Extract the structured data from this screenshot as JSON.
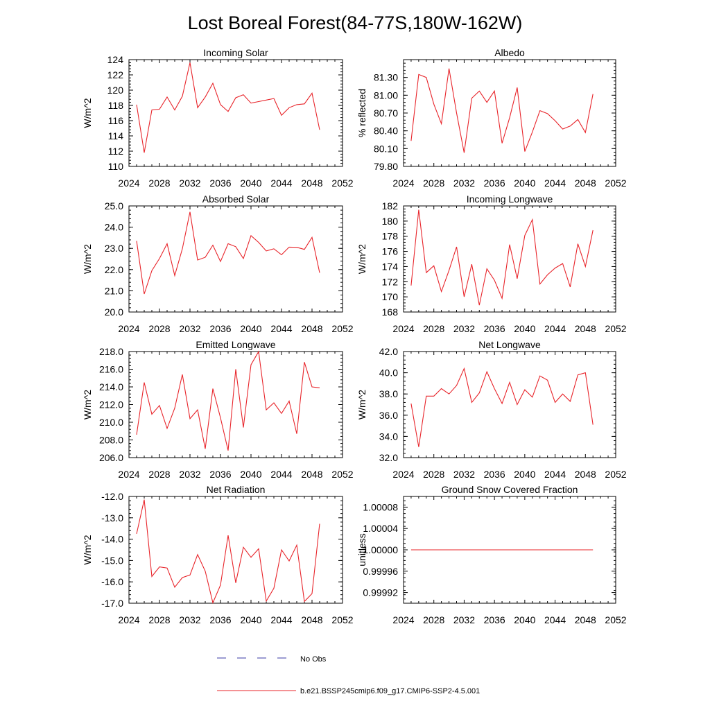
{
  "title": "Lost Boreal Forest(84-77S,180W-162W)",
  "legend": {
    "obs_label": "No Obs",
    "model_label": "b.e21.BSSP245cmip6.f09_g17.CMIP6-SSP2-4.5.001",
    "obs_color": "#3a3aa6",
    "model_color": "#e8242a"
  },
  "chart_data": [
    {
      "type": "line",
      "title": "Incoming Solar",
      "ylabel": "W/m^2",
      "xlim": [
        2024,
        2052
      ],
      "ylim": [
        110,
        124
      ],
      "xticks": [
        "2024",
        "2028",
        "2032",
        "2036",
        "2040",
        "2044",
        "2048",
        "2052"
      ],
      "yticks": [
        "110",
        "112",
        "114",
        "116",
        "118",
        "120",
        "122",
        "124"
      ],
      "series": [
        {
          "x": [
            2025,
            2026,
            2027,
            2028,
            2029,
            2030,
            2031,
            2032,
            2033,
            2034,
            2035,
            2036,
            2037,
            2038,
            2039,
            2040,
            2041,
            2042,
            2043,
            2044,
            2045,
            2046,
            2047,
            2048,
            2049
          ],
          "values": [
            118.1,
            111.8,
            117.4,
            117.5,
            119.1,
            117.4,
            119.2,
            123.6,
            117.7,
            119.1,
            120.9,
            118.1,
            117.2,
            119.0,
            119.4,
            118.3,
            118.5,
            118.7,
            118.9,
            116.7,
            117.7,
            118.1,
            118.2,
            119.6,
            114.8
          ]
        }
      ]
    },
    {
      "type": "line",
      "title": "Albedo",
      "ylabel": "% reflected",
      "xlim": [
        2024,
        2052
      ],
      "ylim": [
        79.8,
        81.6
      ],
      "xticks": [
        "2024",
        "2028",
        "2032",
        "2036",
        "2040",
        "2044",
        "2048",
        "2052"
      ],
      "yticks": [
        "79.80",
        "80.10",
        "80.40",
        "80.70",
        "81.00",
        "81.30"
      ],
      "series": [
        {
          "x": [
            2025,
            2026,
            2027,
            2028,
            2029,
            2030,
            2031,
            2032,
            2033,
            2034,
            2035,
            2036,
            2037,
            2038,
            2039,
            2040,
            2041,
            2042,
            2043,
            2044,
            2045,
            2046,
            2047,
            2048,
            2049
          ],
          "values": [
            80.23,
            81.35,
            81.3,
            80.85,
            80.52,
            81.45,
            80.7,
            80.03,
            80.95,
            81.07,
            80.88,
            81.07,
            80.19,
            80.62,
            81.13,
            80.05,
            80.38,
            80.74,
            80.69,
            80.57,
            80.43,
            80.48,
            80.59,
            80.37,
            81.02
          ]
        }
      ]
    },
    {
      "type": "line",
      "title": "Absorbed Solar",
      "ylabel": "W/m^2",
      "xlim": [
        2024,
        2052
      ],
      "ylim": [
        20.0,
        25.0
      ],
      "xticks": [
        "2024",
        "2028",
        "2032",
        "2036",
        "2040",
        "2044",
        "2048",
        "2052"
      ],
      "yticks": [
        "20.0",
        "21.0",
        "22.0",
        "23.0",
        "24.0",
        "25.0"
      ],
      "series": [
        {
          "x": [
            2025,
            2026,
            2027,
            2028,
            2029,
            2030,
            2031,
            2032,
            2033,
            2034,
            2035,
            2036,
            2037,
            2038,
            2039,
            2040,
            2041,
            2042,
            2043,
            2044,
            2045,
            2046,
            2047,
            2048,
            2049
          ],
          "values": [
            23.35,
            20.85,
            21.95,
            22.52,
            23.22,
            21.72,
            22.98,
            24.72,
            22.45,
            22.58,
            23.15,
            22.38,
            23.22,
            23.08,
            22.52,
            23.6,
            23.28,
            22.88,
            22.98,
            22.7,
            23.06,
            23.05,
            22.95,
            23.52,
            21.85
          ]
        }
      ]
    },
    {
      "type": "line",
      "title": "Incoming Longwave",
      "ylabel": "W/m^2",
      "xlim": [
        2024,
        2052
      ],
      "ylim": [
        168,
        182
      ],
      "xticks": [
        "2024",
        "2028",
        "2032",
        "2036",
        "2040",
        "2044",
        "2048",
        "2052"
      ],
      "yticks": [
        "168",
        "170",
        "172",
        "174",
        "176",
        "178",
        "180",
        "182"
      ],
      "series": [
        {
          "x": [
            2025,
            2026,
            2027,
            2028,
            2029,
            2030,
            2031,
            2032,
            2033,
            2034,
            2035,
            2036,
            2037,
            2038,
            2039,
            2040,
            2041,
            2042,
            2043,
            2044,
            2045,
            2046,
            2047,
            2048,
            2049
          ],
          "values": [
            171.5,
            181.5,
            173.2,
            174.1,
            170.7,
            173.5,
            176.6,
            170.0,
            174.3,
            168.9,
            173.7,
            172.2,
            169.8,
            176.9,
            172.4,
            178.1,
            180.2,
            171.7,
            172.9,
            173.8,
            174.4,
            171.3,
            177.0,
            174.0,
            178.8
          ]
        }
      ]
    },
    {
      "type": "line",
      "title": "Emitted Longwave",
      "ylabel": "W/m^2",
      "xlim": [
        2024,
        2052
      ],
      "ylim": [
        206.0,
        218.0
      ],
      "xticks": [
        "2024",
        "2028",
        "2032",
        "2036",
        "2040",
        "2044",
        "2048",
        "2052"
      ],
      "yticks": [
        "206.0",
        "208.0",
        "210.0",
        "212.0",
        "214.0",
        "216.0",
        "218.0"
      ],
      "series": [
        {
          "x": [
            2025,
            2026,
            2027,
            2028,
            2029,
            2030,
            2031,
            2032,
            2033,
            2034,
            2035,
            2036,
            2037,
            2038,
            2039,
            2040,
            2041,
            2042,
            2043,
            2044,
            2045,
            2046,
            2047,
            2048,
            2049
          ],
          "values": [
            208.6,
            214.5,
            210.9,
            211.9,
            209.3,
            211.6,
            215.4,
            210.4,
            211.4,
            207.0,
            213.8,
            210.5,
            206.8,
            216.0,
            209.4,
            216.5,
            218.0,
            211.4,
            212.2,
            211.0,
            212.4,
            208.7,
            216.8,
            214.0,
            213.9
          ]
        }
      ]
    },
    {
      "type": "line",
      "title": "Net Longwave",
      "ylabel": "W/m^2",
      "xlim": [
        2024,
        2052
      ],
      "ylim": [
        32.0,
        42.0
      ],
      "xticks": [
        "2024",
        "2028",
        "2032",
        "2036",
        "2040",
        "2044",
        "2048",
        "2052"
      ],
      "yticks": [
        "32.0",
        "34.0",
        "36.0",
        "38.0",
        "40.0",
        "42.0"
      ],
      "series": [
        {
          "x": [
            2025,
            2026,
            2027,
            2028,
            2029,
            2030,
            2031,
            2032,
            2033,
            2034,
            2035,
            2036,
            2037,
            2038,
            2039,
            2040,
            2041,
            2042,
            2043,
            2044,
            2045,
            2046,
            2047,
            2048,
            2049
          ],
          "values": [
            37.1,
            33.0,
            37.8,
            37.8,
            38.5,
            38.0,
            38.8,
            40.4,
            37.2,
            38.1,
            40.1,
            38.5,
            37.1,
            39.1,
            37.0,
            38.4,
            37.7,
            39.7,
            39.3,
            37.2,
            38.0,
            37.3,
            39.8,
            40.0,
            35.1
          ]
        }
      ]
    },
    {
      "type": "line",
      "title": "Net Radiation",
      "ylabel": "W/m^2",
      "xlim": [
        2024,
        2052
      ],
      "ylim": [
        -17.0,
        -12.0
      ],
      "xticks": [
        "2024",
        "2028",
        "2032",
        "2036",
        "2040",
        "2044",
        "2048",
        "2052"
      ],
      "yticks": [
        "-17.0",
        "-16.0",
        "-15.0",
        "-14.0",
        "-13.0",
        "-12.0"
      ],
      "series": [
        {
          "x": [
            2025,
            2026,
            2027,
            2028,
            2029,
            2030,
            2031,
            2032,
            2033,
            2034,
            2035,
            2036,
            2037,
            2038,
            2039,
            2040,
            2041,
            2042,
            2043,
            2044,
            2045,
            2046,
            2047,
            2048,
            2049
          ],
          "values": [
            -13.75,
            -12.15,
            -15.75,
            -15.3,
            -15.35,
            -16.25,
            -15.8,
            -15.68,
            -14.72,
            -15.5,
            -16.98,
            -16.15,
            -13.82,
            -16.05,
            -14.38,
            -14.85,
            -14.45,
            -16.9,
            -16.3,
            -14.5,
            -15.02,
            -14.28,
            -16.92,
            -16.55,
            -13.28
          ]
        }
      ]
    },
    {
      "type": "line",
      "title": "Ground Snow Covered Fraction",
      "ylabel": "unitless",
      "xlim": [
        2024,
        2052
      ],
      "ylim": [
        0.9999,
        1.0001
      ],
      "xticks": [
        "2024",
        "2028",
        "2032",
        "2036",
        "2040",
        "2044",
        "2048",
        "2052"
      ],
      "yticks": [
        "0.99992",
        "0.99996",
        "1.00000",
        "1.00004",
        "1.00008"
      ],
      "series": [
        {
          "x": [
            2025,
            2026,
            2027,
            2028,
            2029,
            2030,
            2031,
            2032,
            2033,
            2034,
            2035,
            2036,
            2037,
            2038,
            2039,
            2040,
            2041,
            2042,
            2043,
            2044,
            2045,
            2046,
            2047,
            2048,
            2049
          ],
          "values": [
            1.0,
            1.0,
            1.0,
            1.0,
            1.0,
            1.0,
            1.0,
            1.0,
            1.0,
            1.0,
            1.0,
            1.0,
            1.0,
            1.0,
            1.0,
            1.0,
            1.0,
            1.0,
            1.0,
            1.0,
            1.0,
            1.0,
            1.0,
            1.0,
            1.0
          ]
        }
      ]
    }
  ]
}
